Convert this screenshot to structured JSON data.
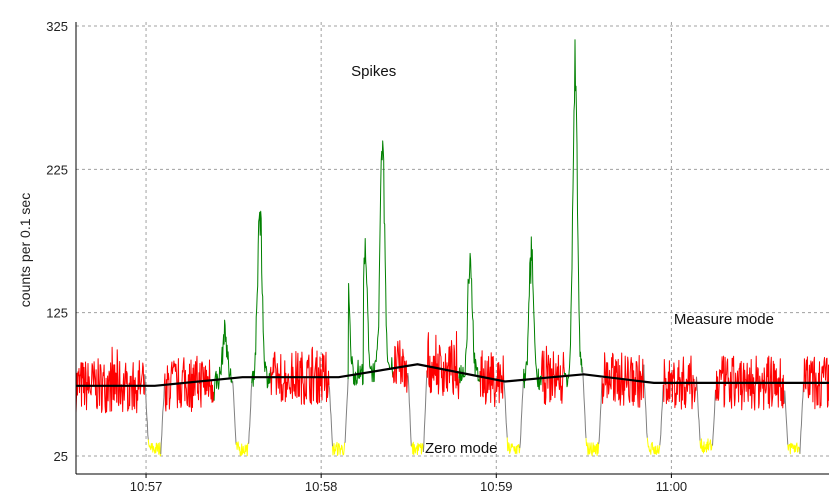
{
  "chart_data": {
    "type": "line",
    "title": "",
    "xlabel": "",
    "ylabel": "counts per 0.1 sec",
    "ylim": [
      25,
      325
    ],
    "yticks": [
      25,
      125,
      225,
      325
    ],
    "xticks": [
      "10:57",
      "10:58",
      "10:59",
      "11:00"
    ],
    "xlim": [
      "10:56.6",
      "11:00.9"
    ],
    "grid": true,
    "grid_style": "dashed",
    "colors": {
      "measure": "#ff0000",
      "spikes": "#008000",
      "zero": "#ffff00",
      "transition": "#808080",
      "baseline": "#000000",
      "grid": "#a0a0a0"
    },
    "annotations": [
      {
        "text": "Spikes",
        "x": "10:58.3",
        "y": 290
      },
      {
        "text": "Measure mode",
        "x": "11:00.3",
        "y": 117
      },
      {
        "text": "Zero mode",
        "x": "10:58.8",
        "y": 27
      }
    ],
    "series": [
      {
        "name": "",
        "kind": "baseline",
        "x": [
          "10:56.6",
          "10:57.05",
          "10:57.55",
          "10:58.1",
          "10:58.55",
          "10:59.05",
          "10:59.5",
          "10:59.9",
          "11:00.9"
        ],
        "y": [
          74,
          74,
          80,
          80,
          89,
          77,
          82,
          76,
          76
        ]
      },
      {
        "name": "",
        "kind": "zero",
        "x": [
          "10:57.05",
          "10:57.55",
          "10:58.1",
          "10:58.55",
          "10:59.1",
          "10:59.55",
          "10:59.9",
          "11:00.2",
          "11:00.7"
        ],
        "y": [
          30,
          30,
          30,
          30,
          30,
          30,
          30,
          32,
          31
        ]
      },
      {
        "name": "",
        "kind": "spikes",
        "x": [
          "10:57.45",
          "10:57.65",
          "10:58.15",
          "10:58.18",
          "10:58.25",
          "10:58.35",
          "10:58.85",
          "10:59.2",
          "10:59.45"
        ],
        "y": [
          115,
          213,
          155,
          142,
          175,
          272,
          175,
          175,
          322
        ]
      }
    ]
  }
}
